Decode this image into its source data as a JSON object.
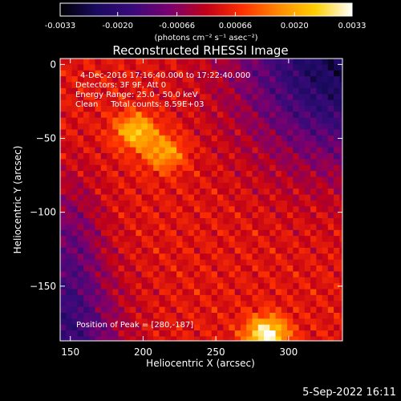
{
  "chart_data": {
    "type": "heatmap",
    "title": "Reconstructed RHESSI Image",
    "xlabel": "Heliocentric X (arcsec)",
    "ylabel": "Heliocentric Y (arcsec)",
    "xlim": [
      143,
      337
    ],
    "ylim": [
      -187,
      4
    ],
    "x_ticks": [
      150,
      200,
      250,
      300
    ],
    "y_ticks": [
      0,
      -50,
      -100,
      -150
    ],
    "colorbar": {
      "range": [
        -0.0033,
        0.0033
      ],
      "ticks": [
        "-0.0033",
        "-0.0020",
        "-0.00066",
        "0.00066",
        "0.0020",
        "0.0033"
      ],
      "unit_label": "(photons cm⁻² s⁻¹ asec⁻²)"
    },
    "annotations": [
      "4-Dec-2016 17:16:40.000 to 17:22:40.000",
      "Detectors: 3F 9F, Att 0",
      "Energy Range: 25.0 - 50.0 keV",
      "Clean     Total counts: 8.59E+03"
    ],
    "peak_label": "Position of Peak = [280,-187]",
    "peak": [
      280,
      -187
    ],
    "bright_sources": [
      {
        "x": 195,
        "y": -45,
        "level": 0.0024
      },
      {
        "x": 215,
        "y": -60,
        "level": 0.002
      },
      {
        "x": 285,
        "y": -183,
        "level": 0.0033
      }
    ],
    "colormap": [
      "#000000",
      "#1a0a60",
      "#3a0a7a",
      "#7a0070",
      "#c00018",
      "#ff3000",
      "#ff8a00",
      "#ffd000",
      "#ffffff"
    ]
  },
  "timestamp": "5-Sep-2022 16:11"
}
